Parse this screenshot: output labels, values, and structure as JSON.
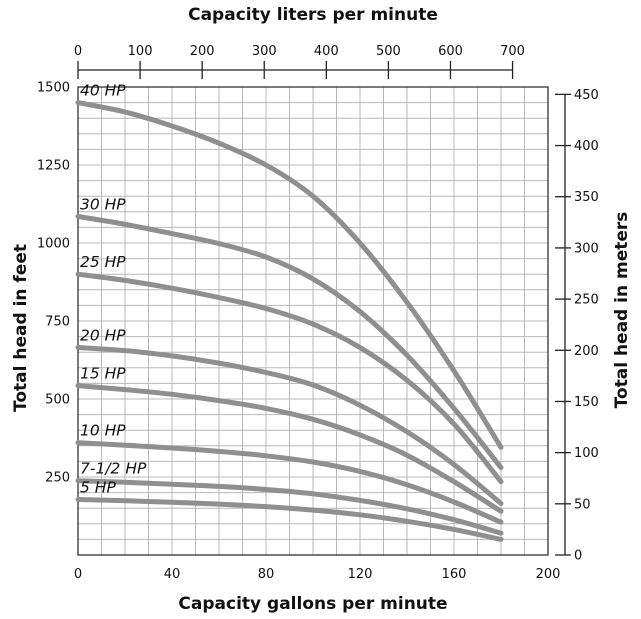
{
  "chart_data": {
    "type": "line",
    "x_label": "Capacity gallons per minute",
    "x_top_label": "Capacity liters per minute",
    "y_label": "Total head in feet",
    "y_right_label": "Total head in meters",
    "xlim": [
      0,
      200
    ],
    "ylim": [
      0,
      1500
    ],
    "x_ticks": [
      "0",
      "40",
      "80",
      "120",
      "160",
      "200"
    ],
    "y_ticks": [
      "250",
      "500",
      "750",
      "1000",
      "1250",
      "1500"
    ],
    "x_top_ticks": [
      "0",
      "100",
      "200",
      "300",
      "400",
      "500",
      "600",
      "700"
    ],
    "y_right_ticks": [
      "0",
      "50",
      "100",
      "150",
      "200",
      "250",
      "300",
      "350",
      "400",
      "450"
    ],
    "grid": true,
    "series": [
      {
        "name": "40 HP",
        "x": [
          0,
          20,
          40,
          60,
          80,
          100,
          120,
          140,
          160,
          180
        ],
        "y": [
          1450,
          1420,
          1375,
          1320,
          1250,
          1150,
          1000,
          810,
          590,
          345
        ]
      },
      {
        "name": "30 HP",
        "x": [
          0,
          20,
          40,
          60,
          80,
          100,
          120,
          140,
          160,
          180
        ],
        "y": [
          1085,
          1060,
          1030,
          998,
          955,
          885,
          780,
          640,
          470,
          280
        ]
      },
      {
        "name": "25 HP",
        "x": [
          0,
          20,
          40,
          60,
          80,
          100,
          120,
          140,
          160,
          180
        ],
        "y": [
          900,
          880,
          855,
          825,
          790,
          740,
          665,
          560,
          420,
          235
        ]
      },
      {
        "name": "20 HP",
        "x": [
          0,
          20,
          40,
          60,
          80,
          100,
          120,
          140,
          160,
          180
        ],
        "y": [
          665,
          655,
          638,
          615,
          585,
          545,
          480,
          395,
          290,
          165
        ]
      },
      {
        "name": "15 HP",
        "x": [
          0,
          20,
          40,
          60,
          80,
          100,
          120,
          140,
          160,
          180
        ],
        "y": [
          543,
          530,
          515,
          495,
          470,
          435,
          385,
          320,
          235,
          140
        ]
      },
      {
        "name": "10 HP",
        "x": [
          0,
          20,
          40,
          60,
          80,
          100,
          120,
          140,
          160,
          180
        ],
        "y": [
          360,
          352,
          343,
          332,
          318,
          298,
          268,
          225,
          170,
          105
        ]
      },
      {
        "name": "7-1/2 HP",
        "x": [
          0,
          20,
          40,
          60,
          80,
          100,
          120,
          140,
          160,
          180
        ],
        "y": [
          238,
          233,
          227,
          220,
          210,
          196,
          175,
          148,
          113,
          70
        ]
      },
      {
        "name": "5 HP",
        "x": [
          0,
          20,
          40,
          60,
          80,
          100,
          120,
          140,
          160,
          180
        ],
        "y": [
          178,
          174,
          169,
          163,
          155,
          144,
          129,
          108,
          82,
          50
        ]
      }
    ]
  }
}
